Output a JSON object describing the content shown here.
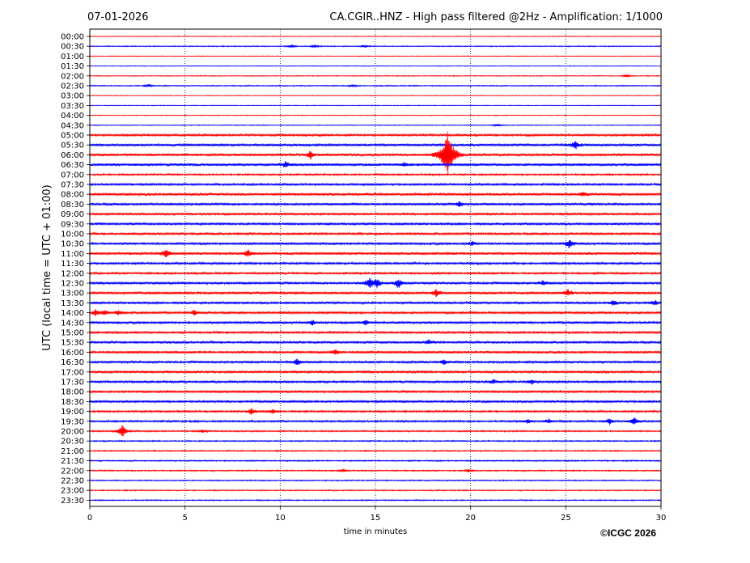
{
  "chart_data": {
    "type": "line",
    "date": "07-01-2026",
    "title": "CA.CGIR..HNZ - High pass filtered @2Hz - Amplification: 1/1000",
    "xlabel": "time in minutes",
    "ylabel": "UTC (local time = UTC + 01:00)",
    "xlim": [
      0,
      30
    ],
    "x_ticks": [
      "0",
      "5",
      "10",
      "15",
      "20",
      "25",
      "30"
    ],
    "grid": "vertical dotted lines every 5 minutes",
    "row_labels": [
      "00:00",
      "00:30",
      "01:00",
      "01:30",
      "02:00",
      "02:30",
      "03:00",
      "03:30",
      "04:00",
      "04:30",
      "05:00",
      "05:30",
      "06:00",
      "06:30",
      "07:00",
      "07:30",
      "08:00",
      "08:30",
      "09:00",
      "09:30",
      "10:00",
      "10:30",
      "11:00",
      "11:30",
      "12:00",
      "12:30",
      "13:00",
      "13:30",
      "14:00",
      "14:30",
      "15:00",
      "15:30",
      "16:00",
      "16:30",
      "17:00",
      "17:30",
      "18:00",
      "18:30",
      "19:00",
      "19:30",
      "20:00",
      "20:30",
      "21:00",
      "21:30",
      "22:00",
      "22:30",
      "23:00",
      "23:30"
    ],
    "trace_colors": [
      "#ff0000",
      "#0000ff"
    ],
    "noise_levels": [
      0.5,
      0.7,
      0.5,
      0.5,
      0.6,
      0.8,
      0.5,
      0.5,
      0.5,
      0.6,
      1.5,
      1.8,
      1.8,
      1.9,
      1.2,
      1.5,
      1.8,
      1.7,
      1.6,
      1.6,
      1.6,
      1.6,
      1.8,
      1.5,
      1.4,
      1.6,
      1.8,
      1.6,
      1.6,
      1.6,
      1.5,
      1.6,
      1.6,
      1.6,
      1.6,
      1.6,
      1.6,
      1.6,
      1.3,
      1.3,
      1.0,
      0.9,
      0.9,
      0.9,
      0.9,
      0.8,
      0.8,
      0.8
    ],
    "events": [
      {
        "row": 1,
        "t": 10.6,
        "amp": 2
      },
      {
        "row": 1,
        "t": 11.8,
        "amp": 2
      },
      {
        "row": 1,
        "t": 14.4,
        "amp": 1.5
      },
      {
        "row": 4,
        "t": 28.2,
        "amp": 2
      },
      {
        "row": 5,
        "t": 3.1,
        "amp": 2
      },
      {
        "row": 5,
        "t": 13.8,
        "amp": 1.5
      },
      {
        "row": 9,
        "t": 21.4,
        "amp": 2
      },
      {
        "row": 11,
        "t": 25.5,
        "amp": 5
      },
      {
        "row": 12,
        "t": 11.6,
        "amp": 5
      },
      {
        "row": 12,
        "t": 18.8,
        "amp": 30
      },
      {
        "row": 13,
        "t": 10.3,
        "amp": 4
      },
      {
        "row": 13,
        "t": 16.5,
        "amp": 3
      },
      {
        "row": 16,
        "t": 25.9,
        "amp": 3
      },
      {
        "row": 17,
        "t": 19.4,
        "amp": 3
      },
      {
        "row": 21,
        "t": 20.1,
        "amp": 3
      },
      {
        "row": 21,
        "t": 25.2,
        "amp": 6
      },
      {
        "row": 22,
        "t": 4.0,
        "amp": 5
      },
      {
        "row": 22,
        "t": 8.3,
        "amp": 5
      },
      {
        "row": 25,
        "t": 14.7,
        "amp": 7
      },
      {
        "row": 25,
        "t": 15.1,
        "amp": 5
      },
      {
        "row": 25,
        "t": 16.2,
        "amp": 6
      },
      {
        "row": 25,
        "t": 23.8,
        "amp": 3
      },
      {
        "row": 26,
        "t": 18.2,
        "amp": 4
      },
      {
        "row": 26,
        "t": 25.1,
        "amp": 4
      },
      {
        "row": 27,
        "t": 27.5,
        "amp": 3
      },
      {
        "row": 27,
        "t": 29.7,
        "amp": 3
      },
      {
        "row": 28,
        "t": 0.3,
        "amp": 4
      },
      {
        "row": 28,
        "t": 0.8,
        "amp": 3
      },
      {
        "row": 28,
        "t": 1.5,
        "amp": 3
      },
      {
        "row": 28,
        "t": 5.5,
        "amp": 3
      },
      {
        "row": 29,
        "t": 11.7,
        "amp": 3
      },
      {
        "row": 29,
        "t": 14.5,
        "amp": 3
      },
      {
        "row": 31,
        "t": 17.8,
        "amp": 3
      },
      {
        "row": 32,
        "t": 12.9,
        "amp": 4
      },
      {
        "row": 33,
        "t": 10.9,
        "amp": 4
      },
      {
        "row": 33,
        "t": 18.6,
        "amp": 3
      },
      {
        "row": 35,
        "t": 21.2,
        "amp": 3
      },
      {
        "row": 35,
        "t": 23.2,
        "amp": 3
      },
      {
        "row": 38,
        "t": 8.5,
        "amp": 4
      },
      {
        "row": 38,
        "t": 9.6,
        "amp": 3
      },
      {
        "row": 39,
        "t": 23.0,
        "amp": 3
      },
      {
        "row": 39,
        "t": 24.1,
        "amp": 3
      },
      {
        "row": 39,
        "t": 27.3,
        "amp": 4
      },
      {
        "row": 39,
        "t": 28.6,
        "amp": 5
      },
      {
        "row": 40,
        "t": 1.7,
        "amp": 8
      },
      {
        "row": 40,
        "t": 5.9,
        "amp": 2
      },
      {
        "row": 44,
        "t": 13.3,
        "amp": 2
      },
      {
        "row": 44,
        "t": 19.9,
        "amp": 2
      }
    ],
    "copyright": "©ICGC 2026"
  }
}
